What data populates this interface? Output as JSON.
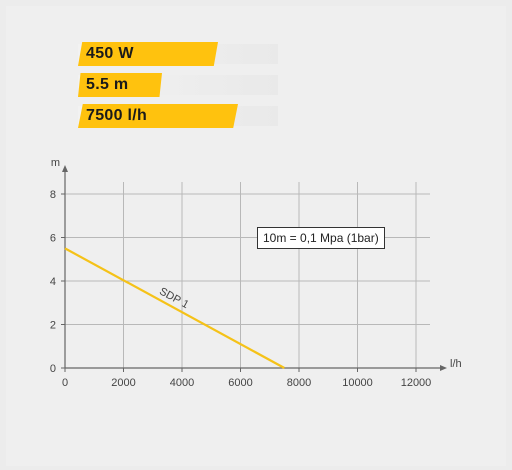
{
  "specs": [
    {
      "label": "450 W",
      "fill_fraction": 0.7
    },
    {
      "label": "5.5 m",
      "fill_fraction": 0.42
    },
    {
      "label": "7500 l/h",
      "fill_fraction": 0.8
    }
  ],
  "colors": {
    "accent": "#ffc20e",
    "series_line": "#f5c218",
    "grid": "#b8b8b8",
    "axis": "#666666"
  },
  "note": "10m = 0,1 Mpa (1bar)",
  "chart_data": {
    "type": "line",
    "title": "",
    "xlabel": "l/h",
    "ylabel": "m",
    "xlim": [
      0,
      12000
    ],
    "ylim": [
      0,
      8
    ],
    "xticks": [
      0,
      2000,
      4000,
      6000,
      8000,
      10000,
      12000
    ],
    "yticks": [
      0,
      2,
      4,
      6,
      8
    ],
    "grid": true,
    "series": [
      {
        "name": "SDP 1",
        "x": [
          0,
          7500
        ],
        "y": [
          5.5,
          0
        ]
      }
    ]
  }
}
